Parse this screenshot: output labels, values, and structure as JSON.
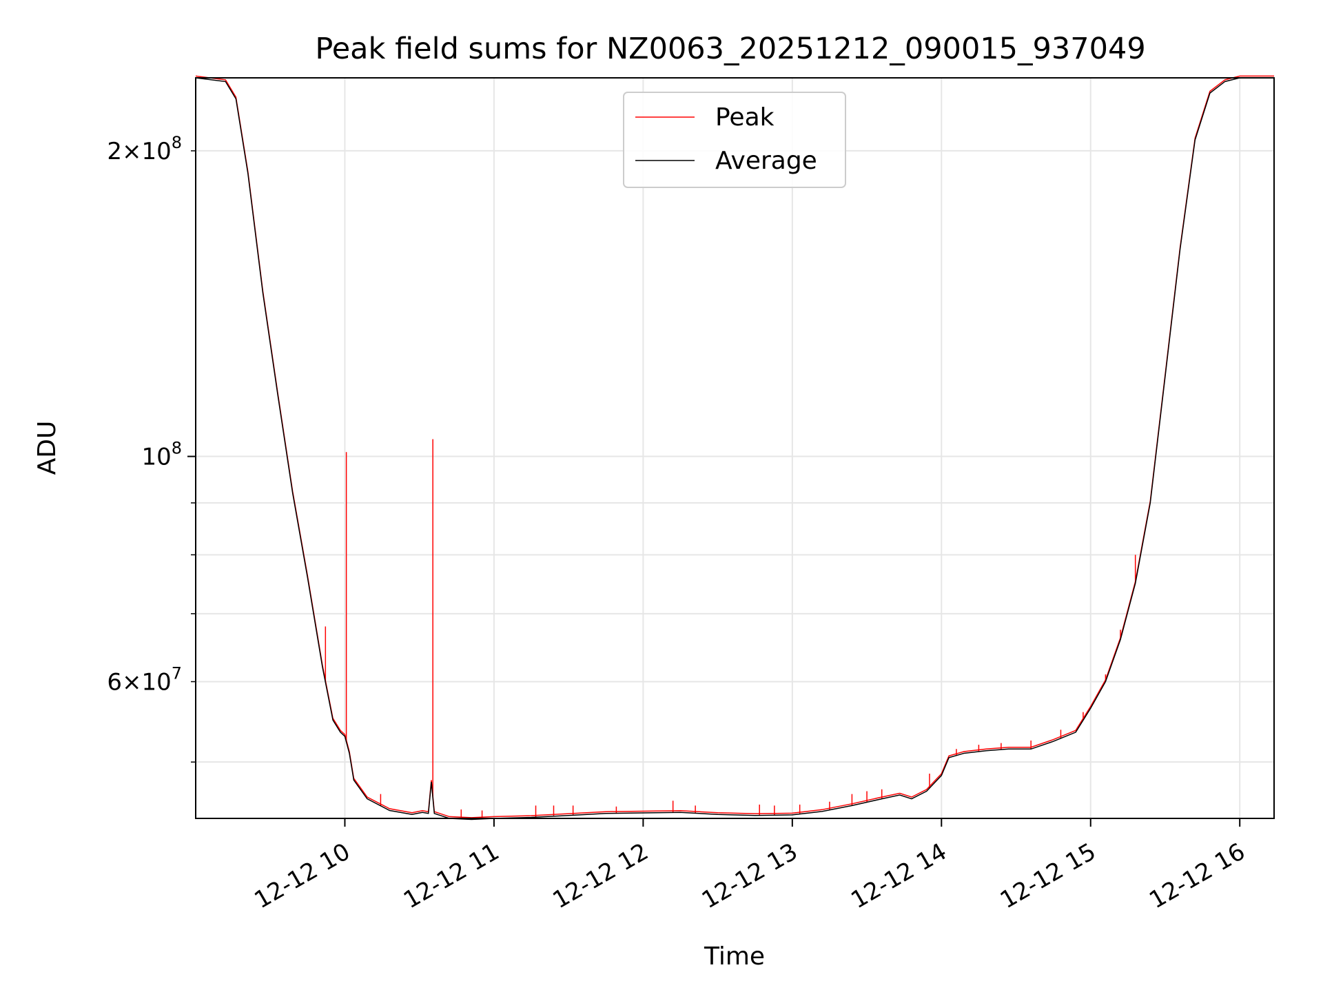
{
  "chart_data": {
    "type": "line",
    "title": "Peak field sums for NZ0063_20251212_090015_937049",
    "xlabel": "Time",
    "ylabel": "ADU",
    "y_scale": "log",
    "ylim": [
      44000000,
      236000000
    ],
    "xlim_hours": [
      9.0,
      16.23
    ],
    "grid": true,
    "legend_position": "upper center",
    "x_ticks": [
      {
        "hour": 10,
        "label": "12-12 10"
      },
      {
        "hour": 11,
        "label": "12-12 11"
      },
      {
        "hour": 12,
        "label": "12-12 12"
      },
      {
        "hour": 13,
        "label": "12-12 13"
      },
      {
        "hour": 14,
        "label": "12-12 14"
      },
      {
        "hour": 15,
        "label": "12-12 15"
      },
      {
        "hour": 16,
        "label": "12-12 16"
      }
    ],
    "y_ticks_major": [
      {
        "value": 100000000,
        "base": "10",
        "exp": "8",
        "coef": ""
      }
    ],
    "y_ticks_minor_labeled": [
      {
        "value": 200000000,
        "coef": "2",
        "base": "10",
        "exp": "8"
      },
      {
        "value": 60000000,
        "coef": "6",
        "base": "10",
        "exp": "7"
      }
    ],
    "y_ticks_minor": [
      50000000,
      60000000,
      70000000,
      80000000,
      90000000,
      200000000
    ],
    "series": [
      {
        "name": "Average",
        "color": "#000000",
        "points": [
          [
            9.0,
            236000000
          ],
          [
            9.2,
            234000000
          ],
          [
            9.27,
            225000000
          ],
          [
            9.35,
            190000000
          ],
          [
            9.45,
            145000000
          ],
          [
            9.55,
            115000000
          ],
          [
            9.65,
            92000000
          ],
          [
            9.75,
            76000000
          ],
          [
            9.85,
            62000000
          ],
          [
            9.92,
            55000000
          ],
          [
            9.97,
            53500000
          ],
          [
            10.0,
            53000000
          ],
          [
            10.03,
            51000000
          ],
          [
            10.06,
            48000000
          ],
          [
            10.15,
            46000000
          ],
          [
            10.3,
            44800000
          ],
          [
            10.45,
            44400000
          ],
          [
            10.52,
            44600000
          ],
          [
            10.56,
            44500000
          ],
          [
            10.58,
            47800000
          ],
          [
            10.6,
            44500000
          ],
          [
            10.7,
            44000000
          ],
          [
            10.85,
            43900000
          ],
          [
            11.0,
            44000000
          ],
          [
            11.25,
            44100000
          ],
          [
            11.5,
            44300000
          ],
          [
            11.75,
            44500000
          ],
          [
            12.0,
            44550000
          ],
          [
            12.25,
            44600000
          ],
          [
            12.5,
            44400000
          ],
          [
            12.75,
            44300000
          ],
          [
            13.0,
            44350000
          ],
          [
            13.2,
            44700000
          ],
          [
            13.4,
            45300000
          ],
          [
            13.6,
            46000000
          ],
          [
            13.72,
            46400000
          ],
          [
            13.8,
            46000000
          ],
          [
            13.9,
            46800000
          ],
          [
            14.0,
            48500000
          ],
          [
            14.05,
            50500000
          ],
          [
            14.15,
            51000000
          ],
          [
            14.3,
            51300000
          ],
          [
            14.45,
            51500000
          ],
          [
            14.6,
            51500000
          ],
          [
            14.75,
            52400000
          ],
          [
            14.9,
            53500000
          ],
          [
            15.0,
            56500000
          ],
          [
            15.1,
            60000000
          ],
          [
            15.2,
            66000000
          ],
          [
            15.3,
            75000000
          ],
          [
            15.4,
            90000000
          ],
          [
            15.5,
            120000000
          ],
          [
            15.6,
            160000000
          ],
          [
            15.7,
            205000000
          ],
          [
            15.8,
            228000000
          ],
          [
            15.9,
            234000000
          ],
          [
            16.0,
            236000000
          ],
          [
            16.23,
            236000000
          ]
        ]
      },
      {
        "name": "Peak",
        "color": "#ff0000",
        "spikes": [
          [
            10.01,
            101000000
          ],
          [
            10.59,
            104000000
          ],
          [
            9.87,
            68000000
          ],
          [
            10.24,
            46500000
          ],
          [
            10.78,
            44900000
          ],
          [
            10.92,
            44800000
          ],
          [
            11.28,
            45300000
          ],
          [
            11.4,
            45300000
          ],
          [
            11.53,
            45300000
          ],
          [
            11.82,
            45200000
          ],
          [
            12.2,
            45800000
          ],
          [
            12.35,
            45300000
          ],
          [
            12.78,
            45400000
          ],
          [
            12.88,
            45300000
          ],
          [
            13.05,
            45400000
          ],
          [
            13.25,
            45700000
          ],
          [
            13.4,
            46500000
          ],
          [
            13.5,
            46800000
          ],
          [
            13.6,
            47000000
          ],
          [
            13.92,
            48700000
          ],
          [
            14.1,
            51500000
          ],
          [
            14.25,
            52000000
          ],
          [
            14.4,
            52200000
          ],
          [
            14.6,
            52500000
          ],
          [
            14.8,
            53800000
          ],
          [
            14.95,
            56000000
          ],
          [
            15.1,
            61000000
          ],
          [
            15.2,
            67500000
          ],
          [
            15.3,
            80000000
          ]
        ]
      }
    ]
  },
  "legend": {
    "items": [
      {
        "label": "Peak",
        "color": "#ff0000"
      },
      {
        "label": "Average",
        "color": "#000000"
      }
    ]
  }
}
